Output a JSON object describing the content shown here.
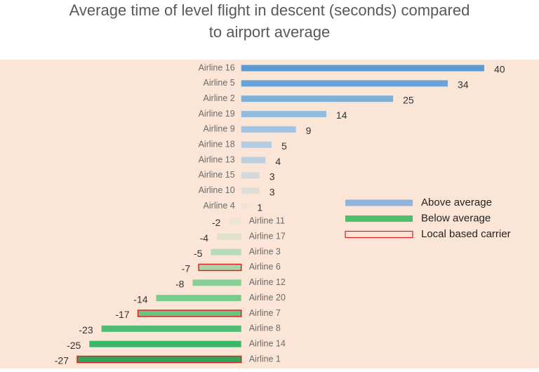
{
  "chart_data": {
    "type": "bar",
    "orientation": "horizontal",
    "title": "Average time of level flight in descent (seconds) compared to airport average",
    "categories": [
      "Airline 16",
      "Airline 5",
      "Airline 2",
      "Airline 19",
      "Airline 9",
      "Airline 18",
      "Airline 13",
      "Airline 15",
      "Airline 10",
      "Airline 4",
      "Airline 11",
      "Airline 17",
      "Airline 3",
      "Airline 6",
      "Airline 12",
      "Airline 20",
      "Airline 7",
      "Airline 8",
      "Airline 14",
      "Airline 1"
    ],
    "values": [
      40,
      34,
      25,
      14,
      9,
      5,
      4,
      3,
      3,
      1,
      -2,
      -4,
      -5,
      -7,
      -8,
      -14,
      -17,
      -23,
      -25,
      -27
    ],
    "colors": [
      "#5b9bd5",
      "#6aa3d7",
      "#7eafd9",
      "#94bcdd",
      "#a3c3df",
      "#b5cce1",
      "#bdd0e0",
      "#d3d8dc",
      "#e0dcd8",
      "#efe1d7",
      "#eee4d4",
      "#dfe2c8",
      "#b6dcb7",
      "#a6d6a8",
      "#88cf95",
      "#7ccb8d",
      "#6ac585",
      "#4fbd73",
      "#3bb76a",
      "#2ea55a"
    ],
    "outlined": [
      false,
      false,
      false,
      false,
      false,
      false,
      false,
      false,
      false,
      false,
      false,
      false,
      false,
      true,
      false,
      false,
      true,
      false,
      false,
      true
    ],
    "outline_color": "#e02020",
    "xlim": [
      -27,
      40
    ],
    "legend": [
      {
        "name": "Above average",
        "color": "#8fb4dc",
        "style": "fill"
      },
      {
        "name": "Below average",
        "color": "#4cc06e",
        "style": "fill"
      },
      {
        "name": "Local based carrier",
        "color": "#e02020",
        "style": "outline"
      }
    ]
  }
}
